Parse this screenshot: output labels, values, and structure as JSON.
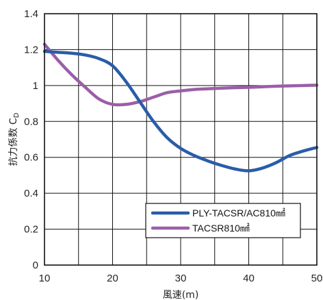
{
  "chart_data": {
    "type": "line",
    "xlabel": "風速(m)",
    "ylabel": "抗力係数 CD",
    "ylabel_main": "抗力係数 C",
    "ylabel_sub": "D",
    "xlim": [
      10,
      50
    ],
    "ylim": [
      0,
      1.4
    ],
    "x_ticks": [
      10,
      20,
      30,
      40,
      50
    ],
    "y_ticks": [
      0,
      0.2,
      0.4,
      0.6,
      0.8,
      1,
      1.2,
      1.4
    ],
    "x_tick_labels": [
      "10",
      "20",
      "30",
      "40",
      "50"
    ],
    "y_tick_labels": [
      "0",
      "0.2",
      "0.4",
      "0.6",
      "0.8",
      "1",
      "1.2",
      "1.4"
    ],
    "grid": true,
    "legend_position": "bottom-right",
    "series": [
      {
        "name": "PLY-TACSR/AC810㎟",
        "color": "#2a5ca8",
        "x": [
          10,
          12,
          14,
          16,
          18,
          20,
          22,
          24,
          26,
          28,
          30,
          32,
          34,
          36,
          38,
          40,
          42,
          44,
          46,
          48,
          50
        ],
        "y": [
          1.19,
          1.185,
          1.18,
          1.17,
          1.15,
          1.11,
          1.02,
          0.91,
          0.8,
          0.71,
          0.65,
          0.61,
          0.58,
          0.555,
          0.535,
          0.525,
          0.54,
          0.57,
          0.61,
          0.635,
          0.655
        ]
      },
      {
        "name": "TACSR810㎟",
        "color": "#9b5ea8",
        "x": [
          10,
          12,
          14,
          16,
          18,
          20,
          22,
          24,
          26,
          28,
          30,
          32,
          34,
          36,
          38,
          40,
          42,
          44,
          46,
          48,
          50
        ],
        "y": [
          1.23,
          1.14,
          1.06,
          0.99,
          0.925,
          0.895,
          0.895,
          0.91,
          0.935,
          0.96,
          0.97,
          0.978,
          0.982,
          0.985,
          0.988,
          0.99,
          0.993,
          0.996,
          0.998,
          1.0,
          1.002
        ]
      }
    ]
  }
}
